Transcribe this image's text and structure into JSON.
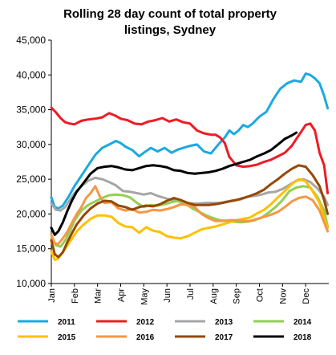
{
  "chart_data": {
    "type": "line",
    "title_lines": [
      "Rolling 28 day count of total property",
      "listings, Sydney"
    ],
    "xlabel": "",
    "ylabel": "",
    "ylim": [
      10000,
      45000
    ],
    "yticks": [
      10000,
      15000,
      20000,
      25000,
      30000,
      35000,
      40000,
      45000
    ],
    "ytick_labels": [
      "10,000",
      "15,000",
      "20,000",
      "25,000",
      "30,000",
      "35,000",
      "40,000",
      "45,000"
    ],
    "xlim": [
      0,
      12
    ],
    "xticks": [
      0,
      1,
      2,
      3,
      4,
      5,
      6,
      7,
      8,
      9,
      10,
      11
    ],
    "xtick_labels": [
      "Jan",
      "Feb",
      "Mar",
      "Apr",
      "May",
      "Jun",
      "Jul",
      "Aug",
      "Sep",
      "Oct",
      "Nov",
      "Dec"
    ],
    "grid": false,
    "legend_position": "bottom",
    "series": [
      {
        "name": "2011",
        "color": "#1ba9e1",
        "x": [
          0,
          0.15,
          0.3,
          0.5,
          0.75,
          1,
          1.3,
          1.6,
          1.9,
          2.2,
          2.5,
          2.8,
          3,
          3.2,
          3.5,
          3.8,
          4,
          4.3,
          4.6,
          4.9,
          5.2,
          5.5,
          5.8,
          6,
          6.3,
          6.6,
          6.9,
          7.1,
          7.3,
          7.5,
          7.7,
          7.9,
          8.1,
          8.3,
          8.5,
          8.7,
          9,
          9.3,
          9.6,
          9.9,
          10.2,
          10.5,
          10.8,
          11,
          11.2,
          11.4,
          11.6,
          11.8,
          11.95
        ],
        "y": [
          22400,
          21000,
          20800,
          21200,
          22500,
          24000,
          25500,
          27000,
          28500,
          29500,
          30000,
          30500,
          30200,
          29700,
          29200,
          28300,
          28800,
          29500,
          29000,
          29500,
          28800,
          29300,
          29600,
          29800,
          30000,
          29000,
          28700,
          29500,
          30300,
          31000,
          32000,
          31500,
          32000,
          32800,
          32500,
          33000,
          34000,
          34700,
          36500,
          38000,
          38800,
          39200,
          39000,
          40200,
          40000,
          39500,
          38800,
          37000,
          35200
        ]
      },
      {
        "name": "2012",
        "color": "#ee1c25",
        "x": [
          0,
          0.2,
          0.4,
          0.6,
          0.8,
          1,
          1.3,
          1.6,
          1.9,
          2.2,
          2.5,
          2.8,
          3,
          3.3,
          3.6,
          3.9,
          4.2,
          4.5,
          4.8,
          5.1,
          5.4,
          5.7,
          6,
          6.3,
          6.6,
          6.9,
          7.1,
          7.3,
          7.5,
          7.7,
          8,
          8.3,
          8.6,
          8.9,
          9.2,
          9.5,
          9.8,
          10.1,
          10.4,
          10.6,
          10.8,
          11,
          11.2,
          11.4,
          11.6,
          11.8,
          11.95
        ],
        "y": [
          35300,
          34600,
          33800,
          33200,
          33000,
          32900,
          33400,
          33600,
          33700,
          33900,
          34500,
          34100,
          33700,
          33500,
          33000,
          32900,
          33300,
          33500,
          33800,
          33300,
          33600,
          33200,
          33000,
          32000,
          31600,
          31400,
          31400,
          31000,
          30200,
          28200,
          27000,
          26800,
          26900,
          27100,
          27500,
          27800,
          28300,
          28800,
          29800,
          30800,
          31800,
          32800,
          33000,
          32000,
          28800,
          27000,
          23000
        ]
      },
      {
        "name": "2013",
        "color": "#a6a6a6",
        "x": [
          0,
          0.2,
          0.4,
          0.6,
          0.8,
          1,
          1.3,
          1.6,
          1.9,
          2.2,
          2.5,
          2.8,
          3.1,
          3.4,
          3.7,
          4,
          4.3,
          4.6,
          4.9,
          5.2,
          5.5,
          5.8,
          6.1,
          6.4,
          6.7,
          7,
          7.3,
          7.6,
          7.9,
          8.2,
          8.5,
          8.8,
          9.1,
          9.4,
          9.7,
          10,
          10.3,
          10.6,
          10.9,
          11.2,
          11.5,
          11.8,
          11.95
        ],
        "y": [
          21500,
          20600,
          20500,
          21000,
          22000,
          23000,
          24000,
          24800,
          25200,
          25000,
          24600,
          24100,
          23300,
          23200,
          23000,
          22800,
          23000,
          22600,
          22300,
          22000,
          21800,
          21600,
          21500,
          21500,
          21600,
          21600,
          21600,
          21800,
          22000,
          22100,
          22500,
          22600,
          22800,
          23100,
          23200,
          23600,
          24200,
          24800,
          25000,
          24600,
          23700,
          22500,
          21300
        ]
      },
      {
        "name": "2014",
        "color": "#92d050",
        "x": [
          0,
          0.2,
          0.4,
          0.6,
          0.8,
          1,
          1.3,
          1.6,
          1.9,
          2.2,
          2.5,
          2.8,
          3.1,
          3.4,
          3.7,
          4,
          4.3,
          4.6,
          4.9,
          5.2,
          5.5,
          5.8,
          6.1,
          6.4,
          6.7,
          7,
          7.3,
          7.6,
          7.9,
          8.2,
          8.5,
          8.8,
          9.1,
          9.4,
          9.7,
          10,
          10.3,
          10.6,
          10.9,
          11.2,
          11.5,
          11.8,
          11.95
        ],
        "y": [
          16500,
          15500,
          15300,
          16200,
          17500,
          19000,
          20500,
          21300,
          21800,
          22300,
          22700,
          22800,
          22700,
          22400,
          21600,
          21000,
          21300,
          21200,
          21400,
          21700,
          21900,
          21500,
          20800,
          20300,
          19800,
          19400,
          19100,
          19000,
          18900,
          18800,
          18900,
          19100,
          19500,
          20200,
          21000,
          22000,
          23300,
          23800,
          24000,
          23800,
          22500,
          20500,
          18200
        ]
      },
      {
        "name": "2015",
        "color": "#ffc000",
        "x": [
          0,
          0.15,
          0.3,
          0.5,
          0.7,
          0.9,
          1.1,
          1.4,
          1.7,
          2,
          2.3,
          2.6,
          2.9,
          3.2,
          3.5,
          3.8,
          4.1,
          4.4,
          4.7,
          5,
          5.3,
          5.6,
          5.9,
          6.2,
          6.5,
          6.8,
          7.1,
          7.4,
          7.7,
          8,
          8.3,
          8.6,
          8.9,
          9.2,
          9.5,
          9.8,
          10.1,
          10.4,
          10.7,
          11,
          11.3,
          11.6,
          11.8,
          11.95
        ],
        "y": [
          14600,
          13400,
          13600,
          14500,
          15500,
          16500,
          17500,
          18500,
          19300,
          19800,
          19800,
          19600,
          18700,
          18200,
          18100,
          17300,
          18100,
          17600,
          17400,
          16800,
          16600,
          16500,
          16800,
          17300,
          17800,
          18000,
          18200,
          18500,
          18800,
          19100,
          19300,
          19500,
          20100,
          20600,
          21400,
          22400,
          23300,
          24300,
          25000,
          24700,
          23300,
          21600,
          19500,
          18000
        ]
      },
      {
        "name": "2016",
        "color": "#f79646",
        "x": [
          0,
          0.15,
          0.3,
          0.5,
          0.7,
          0.9,
          1.1,
          1.3,
          1.5,
          1.7,
          1.9,
          2.1,
          2.3,
          2.6,
          2.9,
          3.2,
          3.5,
          3.8,
          4.1,
          4.4,
          4.7,
          5,
          5.3,
          5.6,
          5.9,
          6.2,
          6.5,
          6.8,
          7.1,
          7.4,
          7.7,
          8,
          8.3,
          8.6,
          8.9,
          9.2,
          9.5,
          9.8,
          10.1,
          10.4,
          10.7,
          11,
          11.3,
          11.6,
          11.8,
          11.95
        ],
        "y": [
          17000,
          15800,
          15700,
          16500,
          17500,
          18800,
          20000,
          21000,
          22300,
          23000,
          24000,
          22500,
          21600,
          21700,
          20800,
          20500,
          20700,
          20200,
          20300,
          20600,
          20500,
          20700,
          21000,
          21400,
          21300,
          21000,
          20000,
          19400,
          19000,
          19000,
          19100,
          19100,
          19000,
          19000,
          19300,
          19600,
          19900,
          20300,
          21000,
          21800,
          22300,
          22500,
          22000,
          20500,
          18800,
          17500
        ]
      },
      {
        "name": "2017",
        "color": "#974706",
        "x": [
          0,
          0.15,
          0.3,
          0.5,
          0.7,
          0.9,
          1.1,
          1.4,
          1.7,
          2,
          2.3,
          2.6,
          2.9,
          3.2,
          3.5,
          3.8,
          4.1,
          4.4,
          4.7,
          5,
          5.3,
          5.6,
          5.9,
          6.2,
          6.5,
          6.8,
          7.1,
          7.4,
          7.7,
          8,
          8.3,
          8.6,
          8.9,
          9.2,
          9.5,
          9.8,
          10.1,
          10.4,
          10.7,
          11,
          11.3,
          11.6,
          11.8,
          11.95
        ],
        "y": [
          16200,
          14200,
          13800,
          14500,
          16000,
          17300,
          18500,
          19800,
          20800,
          21500,
          21900,
          21800,
          21200,
          21000,
          20600,
          21000,
          21200,
          21100,
          21400,
          21900,
          22300,
          22000,
          21600,
          21300,
          21300,
          21300,
          21400,
          21600,
          21800,
          22000,
          22300,
          22600,
          23000,
          23500,
          24300,
          25000,
          25800,
          26500,
          27000,
          26800,
          25600,
          24000,
          22000,
          20000
        ]
      },
      {
        "name": "2018",
        "color": "#000000",
        "x": [
          0,
          0.15,
          0.3,
          0.5,
          0.7,
          0.9,
          1.1,
          1.4,
          1.7,
          2,
          2.3,
          2.6,
          2.9,
          3.2,
          3.5,
          3.8,
          4.1,
          4.4,
          4.7,
          5,
          5.3,
          5.6,
          5.9,
          6.2,
          6.5,
          6.8,
          7.1,
          7.4,
          7.7,
          8,
          8.3,
          8.6,
          8.9,
          9.2,
          9.5,
          9.8,
          10.1,
          10.4,
          10.6
        ],
        "y": [
          18000,
          17000,
          17500,
          18800,
          20500,
          22000,
          23200,
          24500,
          25800,
          26600,
          26800,
          26900,
          26700,
          26400,
          26300,
          26600,
          26900,
          27000,
          26900,
          26700,
          26300,
          26200,
          25900,
          25800,
          25900,
          26000,
          26200,
          26500,
          26900,
          27200,
          27500,
          27800,
          28300,
          28700,
          29200,
          30000,
          30800,
          31300,
          31700
        ]
      }
    ]
  }
}
